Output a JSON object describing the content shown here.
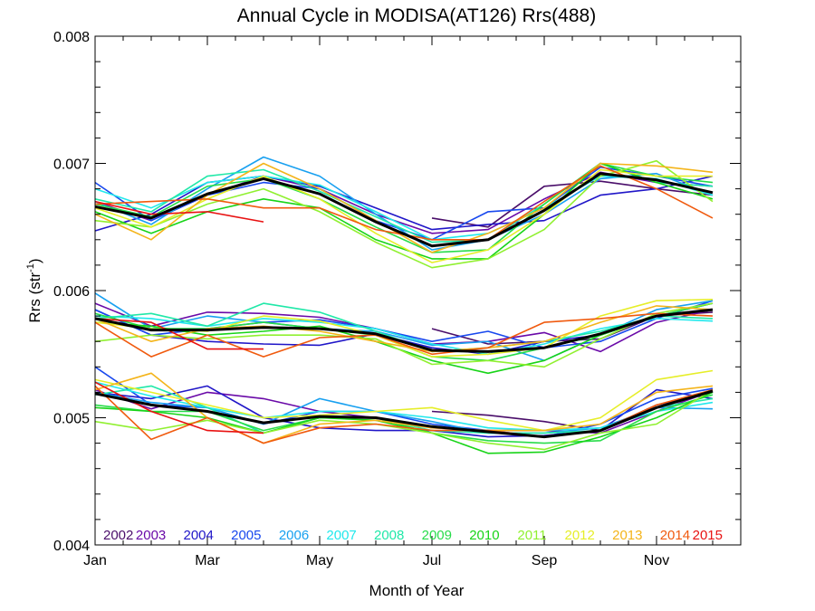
{
  "chart_data": {
    "type": "line",
    "title": "Annual Cycle in MODISA(AT126) Rrs(488)",
    "xlabel": "Month of Year",
    "ylabel": "Rrs (str",
    "ylabel_sup": "-1",
    "ylabel_close": ")",
    "xlim": [
      1,
      12.5
    ],
    "ylim": [
      0.004,
      0.008
    ],
    "xticks": [
      {
        "value": 1,
        "label": "Jan"
      },
      {
        "value": 3,
        "label": "Mar"
      },
      {
        "value": 5,
        "label": "May"
      },
      {
        "value": 7,
        "label": "Jul"
      },
      {
        "value": 9,
        "label": "Sep"
      },
      {
        "value": 11,
        "label": "Nov"
      }
    ],
    "yticks": [
      {
        "value": 0.004,
        "label": "0.004"
      },
      {
        "value": 0.005,
        "label": "0.005"
      },
      {
        "value": 0.006,
        "label": "0.006"
      },
      {
        "value": 0.007,
        "label": "0.007"
      },
      {
        "value": 0.008,
        "label": "0.008"
      }
    ],
    "x": [
      1,
      2,
      3,
      4,
      5,
      6,
      7,
      8,
      9,
      10,
      11,
      12
    ],
    "legend_placement": "bottom",
    "series": [
      {
        "name": "2002",
        "color": "#4a0e6a",
        "groups": [
          [
            null,
            null,
            null,
            null,
            null,
            null,
            0.00657,
            0.0065,
            0.00682,
            0.00686,
            0.0068,
            0.00675
          ],
          [
            null,
            null,
            null,
            null,
            null,
            null,
            0.0057,
            0.00558,
            0.0056,
            0.00562,
            0.0058,
            0.00583
          ],
          [
            null,
            null,
            null,
            null,
            null,
            null,
            0.00505,
            0.00502,
            0.00497,
            0.0049,
            0.0051,
            0.0052
          ]
        ]
      },
      {
        "name": "2003",
        "color": "#6a0aa8",
        "groups": [
          [
            0.0067,
            0.00655,
            0.00675,
            0.0069,
            0.0068,
            0.0066,
            0.00645,
            0.00648,
            0.00672,
            0.00693,
            0.00685,
            0.00682
          ],
          [
            0.0059,
            0.00572,
            0.00583,
            0.00582,
            0.00579,
            0.0057,
            0.00558,
            0.0056,
            0.00567,
            0.00552,
            0.00575,
            0.00585
          ],
          [
            0.00522,
            0.00507,
            0.0052,
            0.00515,
            0.00505,
            0.005,
            0.00492,
            0.0049,
            0.0049,
            0.00488,
            0.00505,
            0.00521
          ]
        ]
      },
      {
        "name": "2004",
        "color": "#2016c8",
        "groups": [
          [
            0.00647,
            0.0066,
            0.00685,
            0.0069,
            0.00682,
            0.00665,
            0.00648,
            0.00652,
            0.00655,
            0.00675,
            0.0068,
            0.0069
          ],
          [
            0.00585,
            0.00565,
            0.0056,
            0.00558,
            0.00557,
            0.00566,
            0.00555,
            0.0055,
            0.0056,
            0.00565,
            0.0058,
            0.0059
          ],
          [
            0.0052,
            0.00515,
            0.00525,
            0.005,
            0.00492,
            0.0049,
            0.0049,
            0.00485,
            0.00486,
            0.0049,
            0.00522,
            0.00515
          ]
        ]
      },
      {
        "name": "2005",
        "color": "#1848ee",
        "groups": [
          [
            0.00685,
            0.00655,
            0.00675,
            0.00685,
            0.0068,
            0.00655,
            0.0064,
            0.00662,
            0.00665,
            0.00697,
            0.0069,
            0.00682
          ],
          [
            0.00585,
            0.00565,
            0.0057,
            0.00575,
            0.00577,
            0.0057,
            0.0056,
            0.00568,
            0.00555,
            0.0056,
            0.00578,
            0.00592
          ],
          [
            0.0054,
            0.0051,
            0.00508,
            0.00495,
            0.00505,
            0.00505,
            0.00495,
            0.0049,
            0.00485,
            0.00495,
            0.00515,
            0.00523
          ]
        ]
      },
      {
        "name": "2006",
        "color": "#18a0f0",
        "groups": [
          [
            0.0067,
            0.00652,
            0.0068,
            0.00705,
            0.0069,
            0.0066,
            0.00632,
            0.0064,
            0.0066,
            0.00688,
            0.00692,
            0.00675
          ],
          [
            0.00598,
            0.0057,
            0.0058,
            0.00575,
            0.0057,
            0.00568,
            0.00557,
            0.0056,
            0.00545,
            0.00565,
            0.00585,
            0.00592
          ],
          [
            0.0052,
            0.00512,
            0.00508,
            0.00495,
            0.00515,
            0.00505,
            0.00497,
            0.00488,
            0.00488,
            0.00492,
            0.00508,
            0.00507
          ]
        ]
      },
      {
        "name": "2007",
        "color": "#20e8ec",
        "groups": [
          [
            0.0068,
            0.00665,
            0.00685,
            0.0069,
            0.00683,
            0.00662,
            0.0064,
            0.00645,
            0.00665,
            0.0069,
            0.00688,
            0.00675
          ],
          [
            0.0058,
            0.00578,
            0.00572,
            0.00578,
            0.00575,
            0.0057,
            0.00558,
            0.0055,
            0.00558,
            0.0057,
            0.00578,
            0.00576
          ],
          [
            0.00528,
            0.00517,
            0.00508,
            0.005,
            0.00505,
            0.00505,
            0.005,
            0.00492,
            0.0049,
            0.00492,
            0.00505,
            0.00512
          ]
        ]
      },
      {
        "name": "2008",
        "color": "#20e8a8",
        "groups": [
          [
            0.00672,
            0.00662,
            0.0069,
            0.00695,
            0.00678,
            0.00658,
            0.00638,
            0.0064,
            0.00668,
            0.007,
            0.00685,
            0.00682
          ],
          [
            0.00578,
            0.00582,
            0.00572,
            0.0059,
            0.00583,
            0.00568,
            0.00552,
            0.00555,
            0.0056,
            0.00568,
            0.0058,
            0.00578
          ],
          [
            0.00518,
            0.00525,
            0.00508,
            0.00488,
            0.005,
            0.005,
            0.0049,
            0.00488,
            0.00488,
            0.0049,
            0.00508,
            0.00515
          ]
        ]
      },
      {
        "name": "2009",
        "color": "#28dc4a",
        "groups": [
          [
            0.00668,
            0.00658,
            0.00682,
            0.00688,
            0.00672,
            0.0065,
            0.0063,
            0.00632,
            0.00668,
            0.007,
            0.0069,
            0.00685
          ],
          [
            0.00582,
            0.0057,
            0.0057,
            0.00575,
            0.0057,
            0.00565,
            0.00548,
            0.00545,
            0.00555,
            0.00565,
            0.0058,
            0.0059
          ],
          [
            0.0051,
            0.00505,
            0.00505,
            0.0049,
            0.005,
            0.005,
            0.00488,
            0.00482,
            0.0048,
            0.00482,
            0.00505,
            0.00518
          ]
        ]
      },
      {
        "name": "2010",
        "color": "#18d418",
        "groups": [
          [
            0.00662,
            0.00645,
            0.00662,
            0.00672,
            0.00665,
            0.0064,
            0.00625,
            0.00625,
            0.0066,
            0.007,
            0.00685,
            0.00672
          ],
          [
            0.00575,
            0.00572,
            0.00565,
            0.00568,
            0.00572,
            0.0056,
            0.00545,
            0.00535,
            0.00545,
            0.00565,
            0.0058,
            0.00585
          ],
          [
            0.00508,
            0.00505,
            0.005,
            0.00488,
            0.005,
            0.00498,
            0.00488,
            0.00472,
            0.00473,
            0.00485,
            0.005,
            0.0052
          ]
        ]
      },
      {
        "name": "2011",
        "color": "#90f030",
        "groups": [
          [
            0.00655,
            0.0065,
            0.00668,
            0.0068,
            0.00662,
            0.00638,
            0.00618,
            0.00625,
            0.00648,
            0.0069,
            0.00702,
            0.0067
          ],
          [
            0.0056,
            0.00565,
            0.00562,
            0.00565,
            0.00565,
            0.00562,
            0.00542,
            0.00545,
            0.0054,
            0.00562,
            0.00582,
            0.0059
          ],
          [
            0.00497,
            0.0049,
            0.00498,
            0.00488,
            0.00498,
            0.00495,
            0.00488,
            0.0048,
            0.00475,
            0.00488,
            0.00495,
            0.00522
          ]
        ]
      },
      {
        "name": "2012",
        "color": "#e6ee28",
        "groups": [
          [
            0.00665,
            0.0065,
            0.00672,
            0.0069,
            0.00672,
            0.00645,
            0.00622,
            0.00632,
            0.0066,
            0.00695,
            0.0069,
            0.0069
          ],
          [
            0.00575,
            0.0057,
            0.00568,
            0.0058,
            0.00576,
            0.00565,
            0.00548,
            0.0055,
            0.00555,
            0.0058,
            0.00592,
            0.00593
          ],
          [
            0.0053,
            0.0052,
            0.0051,
            0.005,
            0.00502,
            0.00505,
            0.00508,
            0.00498,
            0.0049,
            0.005,
            0.0053,
            0.00537
          ]
        ]
      },
      {
        "name": "2013",
        "color": "#f4b41a",
        "groups": [
          [
            0.0066,
            0.0064,
            0.00675,
            0.007,
            0.0068,
            0.00655,
            0.0063,
            0.00645,
            0.00665,
            0.007,
            0.00698,
            0.00693
          ],
          [
            0.00578,
            0.0056,
            0.0057,
            0.00572,
            0.00568,
            0.0056,
            0.00552,
            0.00555,
            0.0056,
            0.00575,
            0.00588,
            0.00585
          ],
          [
            0.00522,
            0.00535,
            0.005,
            0.0048,
            0.00495,
            0.00498,
            0.00492,
            0.0049,
            0.0049,
            0.00495,
            0.0052,
            0.00525
          ]
        ]
      },
      {
        "name": "2014",
        "color": "#f05a0e",
        "groups": [
          [
            0.00668,
            0.0067,
            0.00672,
            0.00665,
            0.00665,
            0.00648,
            0.0064,
            0.0064,
            0.0067,
            0.00698,
            0.0068,
            0.00657
          ],
          [
            0.00575,
            0.00548,
            0.00565,
            0.00548,
            0.00563,
            0.00565,
            0.0055,
            0.00555,
            0.00575,
            0.00578,
            0.00582,
            0.0058
          ],
          [
            0.00525,
            0.00483,
            0.005,
            0.0048,
            0.00492,
            0.00495,
            0.0049,
            0.0049,
            0.00485,
            0.0049,
            0.0051,
            0.00522
          ]
        ]
      },
      {
        "name": "2015",
        "color": "#e81212",
        "groups": [
          [
            0.0067,
            0.0066,
            0.00662,
            0.00654,
            null,
            null,
            null,
            null,
            null,
            null,
            null,
            null
          ],
          [
            0.00578,
            0.00575,
            0.00554,
            0.00554,
            null,
            null,
            null,
            null,
            null,
            null,
            null,
            null
          ],
          [
            0.00528,
            0.00505,
            0.0049,
            0.00488,
            null,
            null,
            null,
            null,
            null,
            null,
            null,
            null
          ]
        ]
      },
      {
        "name": "",
        "color": "#000000",
        "mean": true,
        "groups": [
          [
            0.00666,
            0.00657,
            0.00676,
            0.00688,
            0.00676,
            0.00654,
            0.00635,
            0.0064,
            0.00663,
            0.00692,
            0.00687,
            0.00677
          ],
          [
            0.00578,
            0.00569,
            0.00569,
            0.00571,
            0.0057,
            0.00566,
            0.00553,
            0.00552,
            0.00555,
            0.00566,
            0.0058,
            0.00585
          ],
          [
            0.00519,
            0.0051,
            0.00505,
            0.00496,
            0.00501,
            0.005,
            0.00493,
            0.00489,
            0.00485,
            0.0049,
            0.00508,
            0.00521
          ]
        ]
      }
    ]
  }
}
